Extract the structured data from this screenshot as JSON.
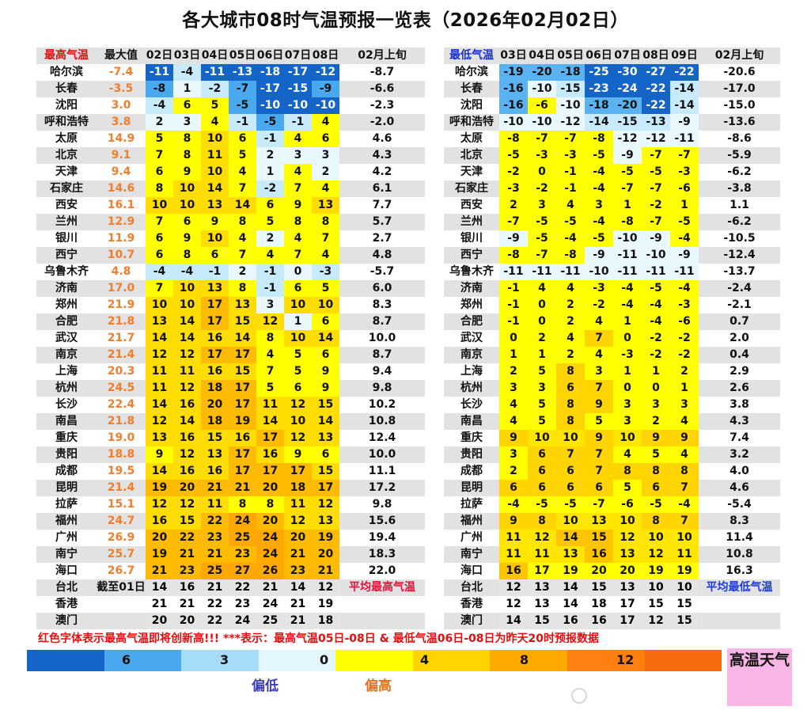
{
  "title": "各大城市08时气温预报一览表（2026年02月02日）",
  "headers": {
    "high_label": "最高气温",
    "high_max": "最大值",
    "high_days": [
      "02日",
      "03日",
      "04日",
      "05日",
      "06日",
      "07日",
      "08日"
    ],
    "high_dekad": "02月上旬",
    "low_label": "最低气温",
    "low_days": [
      "03日",
      "04日",
      "05日",
      "06日",
      "07日",
      "08日",
      "09日"
    ],
    "low_dekad": "02月上旬"
  },
  "rows": [
    {
      "city": "哈尔滨",
      "max": "-7.4",
      "high": [
        "-11",
        "-4",
        "-11",
        "-13",
        "-18",
        "-17",
        "-12"
      ],
      "hd": "-8.7",
      "low": [
        "-19",
        "-20",
        "-18",
        "-25",
        "-30",
        "-27",
        "-22"
      ],
      "ld": "-20.6"
    },
    {
      "city": "长春",
      "max": "-3.5",
      "high": [
        "-8",
        "1",
        "-2",
        "-7",
        "-17",
        "-15",
        "-9"
      ],
      "hd": "-6.6",
      "low": [
        "-16",
        "-10",
        "-15",
        "-23",
        "-24",
        "-22",
        "-14"
      ],
      "ld": "-17.0"
    },
    {
      "city": "沈阳",
      "max": "3.0",
      "high": [
        "-4",
        "6",
        "5",
        "-5",
        "-10",
        "-10",
        "-10"
      ],
      "hd": "-2.3",
      "low": [
        "-16",
        "-6",
        "-10",
        "-18",
        "-20",
        "-22",
        "-14"
      ],
      "ld": "-15.0"
    },
    {
      "city": "呼和浩特",
      "max": "3.8",
      "high": [
        "2",
        "3",
        "4",
        "-1",
        "-5",
        "-1",
        "4"
      ],
      "hd": "-2.0",
      "low": [
        "-10",
        "-10",
        "-12",
        "-14",
        "-15",
        "-13",
        "-9"
      ],
      "ld": "-13.6"
    },
    {
      "city": "太原",
      "max": "14.9",
      "high": [
        "5",
        "8",
        "10",
        "6",
        "-1",
        "4",
        "6"
      ],
      "hd": "4.6",
      "low": [
        "-8",
        "-7",
        "-7",
        "-8",
        "-12",
        "-12",
        "-11"
      ],
      "ld": "-8.6"
    },
    {
      "city": "北京",
      "max": "9.1",
      "high": [
        "7",
        "8",
        "11",
        "5",
        "2",
        "3",
        "3"
      ],
      "hd": "4.3",
      "low": [
        "-5",
        "-3",
        "-3",
        "-5",
        "-9",
        "-7",
        "-7"
      ],
      "ld": "-5.9"
    },
    {
      "city": "天津",
      "max": "9.4",
      "high": [
        "6",
        "9",
        "10",
        "4",
        "1",
        "4",
        "2"
      ],
      "hd": "4.2",
      "low": [
        "-2",
        "0",
        "-1",
        "-4",
        "-5",
        "-5",
        "-3"
      ],
      "ld": "-6.2"
    },
    {
      "city": "石家庄",
      "max": "14.6",
      "high": [
        "8",
        "10",
        "14",
        "7",
        "-2",
        "7",
        "4"
      ],
      "hd": "6.1",
      "low": [
        "-3",
        "-2",
        "-1",
        "-4",
        "-7",
        "-7",
        "-6"
      ],
      "ld": "-3.8"
    },
    {
      "city": "西安",
      "max": "16.1",
      "high": [
        "10",
        "10",
        "13",
        "14",
        "6",
        "9",
        "13"
      ],
      "hd": "7.7",
      "low": [
        "2",
        "3",
        "4",
        "3",
        "1",
        "-2",
        "1"
      ],
      "ld": "1.1"
    },
    {
      "city": "兰州",
      "max": "12.9",
      "high": [
        "7",
        "6",
        "9",
        "8",
        "5",
        "8",
        "8"
      ],
      "hd": "5.7",
      "low": [
        "-7",
        "-5",
        "-5",
        "-4",
        "-8",
        "-7",
        "-5"
      ],
      "ld": "-6.2"
    },
    {
      "city": "银川",
      "max": "11.9",
      "high": [
        "6",
        "9",
        "10",
        "4",
        "2",
        "4",
        "7"
      ],
      "hd": "2.7",
      "low": [
        "-9",
        "-5",
        "-4",
        "-5",
        "-10",
        "-9",
        "-4"
      ],
      "ld": "-10.5"
    },
    {
      "city": "西宁",
      "max": "10.7",
      "high": [
        "6",
        "8",
        "6",
        "7",
        "4",
        "7",
        "4"
      ],
      "hd": "4.8",
      "low": [
        "-8",
        "-7",
        "-8",
        "-9",
        "-11",
        "-10",
        "-9"
      ],
      "ld": "-12.4"
    },
    {
      "city": "乌鲁木齐",
      "max": "4.8",
      "high": [
        "-4",
        "-4",
        "-1",
        "2",
        "-1",
        "0",
        "-3"
      ],
      "hd": "-5.7",
      "low": [
        "-11",
        "-11",
        "-11",
        "-10",
        "-11",
        "-11",
        "-11"
      ],
      "ld": "-13.7"
    },
    {
      "city": "济南",
      "max": "17.0",
      "high": [
        "7",
        "10",
        "13",
        "8",
        "-1",
        "6",
        "5"
      ],
      "hd": "6.0",
      "low": [
        "-1",
        "4",
        "4",
        "-3",
        "-4",
        "-5",
        "-4"
      ],
      "ld": "-2.4"
    },
    {
      "city": "郑州",
      "max": "21.9",
      "high": [
        "10",
        "10",
        "17",
        "13",
        "3",
        "10",
        "10"
      ],
      "hd": "8.3",
      "low": [
        "-1",
        "0",
        "2",
        "-2",
        "-4",
        "-4",
        "-3"
      ],
      "ld": "-2.1"
    },
    {
      "city": "合肥",
      "max": "21.8",
      "high": [
        "13",
        "14",
        "17",
        "15",
        "12",
        "1",
        "6"
      ],
      "hd": "8.7",
      "low": [
        "-1",
        "0",
        "2",
        "4",
        "1",
        "-4",
        "-6"
      ],
      "ld": "0.7"
    },
    {
      "city": "武汉",
      "max": "21.7",
      "high": [
        "14",
        "14",
        "16",
        "14",
        "8",
        "10",
        "14"
      ],
      "hd": "10.0",
      "low": [
        "0",
        "2",
        "4",
        "7",
        "0",
        "-2",
        "-2"
      ],
      "ld": "2.0"
    },
    {
      "city": "南京",
      "max": "21.4",
      "high": [
        "12",
        "12",
        "17",
        "17",
        "4",
        "5",
        "6"
      ],
      "hd": "8.7",
      "low": [
        "1",
        "1",
        "2",
        "4",
        "-3",
        "-2",
        "-2"
      ],
      "ld": "0.4"
    },
    {
      "city": "上海",
      "max": "20.3",
      "high": [
        "11",
        "11",
        "16",
        "15",
        "7",
        "5",
        "9"
      ],
      "hd": "9.4",
      "low": [
        "2",
        "5",
        "8",
        "3",
        "1",
        "1",
        "2"
      ],
      "ld": "2.9"
    },
    {
      "city": "杭州",
      "max": "24.5",
      "high": [
        "11",
        "12",
        "18",
        "17",
        "5",
        "6",
        "9"
      ],
      "hd": "9.8",
      "low": [
        "3",
        "3",
        "6",
        "7",
        "0",
        "0",
        "1"
      ],
      "ld": "2.6"
    },
    {
      "city": "长沙",
      "max": "22.4",
      "high": [
        "14",
        "16",
        "20",
        "17",
        "11",
        "12",
        "15"
      ],
      "hd": "10.2",
      "low": [
        "4",
        "5",
        "8",
        "9",
        "3",
        "3",
        "3"
      ],
      "ld": "3.8"
    },
    {
      "city": "南昌",
      "max": "21.8",
      "high": [
        "12",
        "14",
        "18",
        "19",
        "14",
        "10",
        "14"
      ],
      "hd": "10.8",
      "low": [
        "4",
        "5",
        "8",
        "5",
        "3",
        "2",
        "4"
      ],
      "ld": "4.3"
    },
    {
      "city": "重庆",
      "max": "19.0",
      "high": [
        "13",
        "16",
        "15",
        "16",
        "17",
        "12",
        "13"
      ],
      "hd": "12.4",
      "low": [
        "9",
        "10",
        "10",
        "9",
        "10",
        "9",
        "9"
      ],
      "ld": "7.4"
    },
    {
      "city": "贵阳",
      "max": "18.8",
      "high": [
        "9",
        "12",
        "13",
        "17",
        "16",
        "9",
        "6"
      ],
      "hd": "10.0",
      "low": [
        "3",
        "6",
        "7",
        "7",
        "4",
        "5",
        "4"
      ],
      "ld": "3.2"
    },
    {
      "city": "成都",
      "max": "19.5",
      "high": [
        "14",
        "16",
        "16",
        "17",
        "17",
        "17",
        "15"
      ],
      "hd": "11.1",
      "low": [
        "2",
        "6",
        "6",
        "7",
        "8",
        "8",
        "8"
      ],
      "ld": "4.0"
    },
    {
      "city": "昆明",
      "max": "21.4",
      "high": [
        "19",
        "20",
        "21",
        "21",
        "20",
        "18",
        "17"
      ],
      "hd": "17.2",
      "low": [
        "6",
        "6",
        "6",
        "6",
        "5",
        "6",
        "7"
      ],
      "ld": "4.6"
    },
    {
      "city": "拉萨",
      "max": "15.1",
      "high": [
        "12",
        "12",
        "11",
        "8",
        "8",
        "11",
        "12"
      ],
      "hd": "9.8",
      "low": [
        "-4",
        "-5",
        "-5",
        "-7",
        "-6",
        "-5",
        "-4"
      ],
      "ld": "-5.4"
    },
    {
      "city": "福州",
      "max": "24.7",
      "high": [
        "16",
        "15",
        "22",
        "24",
        "20",
        "12",
        "13"
      ],
      "hd": "15.6",
      "low": [
        "9",
        "8",
        "10",
        "13",
        "10",
        "8",
        "7"
      ],
      "ld": "8.3"
    },
    {
      "city": "广州",
      "max": "26.9",
      "high": [
        "20",
        "22",
        "23",
        "25",
        "24",
        "20",
        "19"
      ],
      "hd": "19.4",
      "low": [
        "11",
        "12",
        "14",
        "15",
        "12",
        "10",
        "10"
      ],
      "ld": "11.4"
    },
    {
      "city": "南宁",
      "max": "25.7",
      "high": [
        "19",
        "21",
        "21",
        "23",
        "24",
        "21",
        "20"
      ],
      "hd": "18.3",
      "low": [
        "11",
        "11",
        "13",
        "16",
        "13",
        "12",
        "11"
      ],
      "ld": "10.8"
    },
    {
      "city": "海口",
      "max": "26.7",
      "high": [
        "21",
        "23",
        "25",
        "27",
        "26",
        "23",
        "21"
      ],
      "hd": "22.0",
      "low": [
        "16",
        "17",
        "19",
        "20",
        "20",
        "19",
        "19"
      ],
      "ld": "16.3"
    },
    {
      "city": "台北",
      "max": "截至01日",
      "high": [
        "14",
        "16",
        "21",
        "22",
        "21",
        "14",
        "12"
      ],
      "hd": "平均最高气温",
      "low": [
        "12",
        "13",
        "14",
        "15",
        "13",
        "10",
        "10"
      ],
      "ld": "平均最低气温"
    },
    {
      "city": "香港",
      "max": "",
      "high": [
        "21",
        "21",
        "22",
        "23",
        "24",
        "21",
        "19"
      ],
      "hd": "",
      "low": [
        "12",
        "13",
        "14",
        "18",
        "17",
        "15",
        "15"
      ],
      "ld": ""
    },
    {
      "city": "澳门",
      "max": "",
      "high": [
        "20",
        "20",
        "22",
        "24",
        "25",
        "21",
        "18"
      ],
      "hd": "",
      "low": [
        "14",
        "15",
        "16",
        "16",
        "17",
        "12",
        "15"
      ],
      "ld": ""
    }
  ],
  "note": "红色字体表示最高气温即将创新高!!! ***表示：最高气温05日-08日 & 最低气温06日-08日为昨天20时预报数据",
  "legend": {
    "colors": [
      "#1565c8",
      "#4aa8ee",
      "#a6dcf8",
      "#e4f6fd",
      "#ffff00",
      "#ffd400",
      "#ffa800",
      "#ff8010",
      "#f56a0a"
    ],
    "labels": [
      "6",
      "3",
      "0",
      "4",
      "8",
      "12"
    ],
    "cold": "偏低",
    "warm": "偏高",
    "hot_box": "高温天气"
  }
}
